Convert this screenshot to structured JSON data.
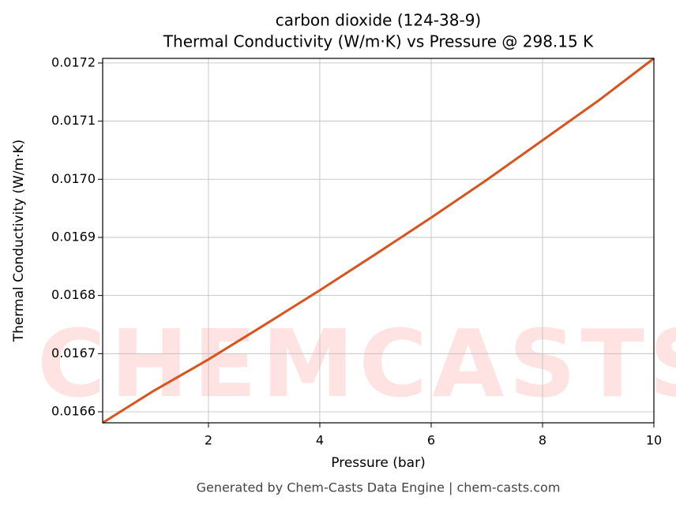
{
  "chart_data": {
    "type": "line",
    "title": "carbon dioxide (124-38-9)",
    "subtitle": "Thermal Conductivity (W/m·K) vs Pressure @ 298.15 K",
    "x_label": "Pressure (bar)",
    "y_label": "Thermal Conductivity (W/m·K)",
    "footer": "Generated by Chem-Casts Data Engine | chem-casts.com",
    "watermark": "CHEMCASTS",
    "x": [
      0.1,
      1,
      2,
      3,
      4,
      5,
      6,
      7,
      8,
      9,
      10
    ],
    "series": [
      {
        "name": "Thermal Conductivity",
        "color": "#d9531e",
        "values": [
          0.016581,
          0.016635,
          0.01669,
          0.016749,
          0.016809,
          0.016871,
          0.016934,
          0.016999,
          0.017067,
          0.017135,
          0.017208
        ]
      }
    ],
    "xlim": [
      0.1,
      10
    ],
    "ylim": [
      0.016581,
      0.017208
    ],
    "xticks": [
      2,
      4,
      6,
      8,
      10
    ],
    "yticks": [
      0.0166,
      0.0167,
      0.0168,
      0.0169,
      {
        "value": 0.017,
        "label": "0.0170"
      },
      0.0171,
      0.0172
    ],
    "grid": true
  }
}
